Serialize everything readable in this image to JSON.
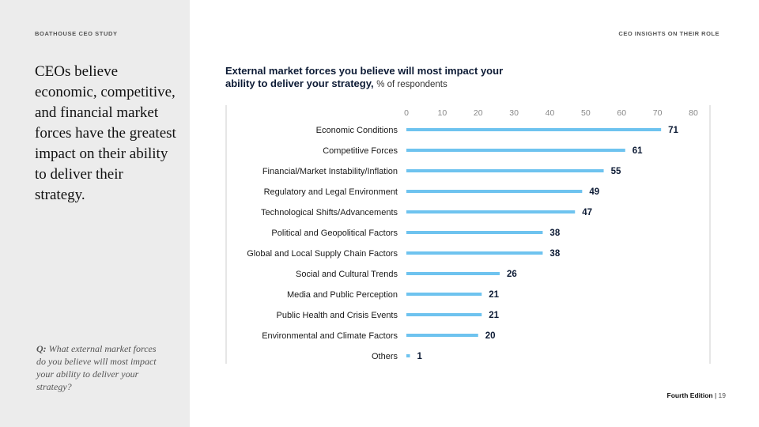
{
  "sidebar": {
    "study_label": "BOATHOUSE CEO STUDY",
    "headline": "CEOs believe economic, competitive, and financial market forces have the greatest impact on their ability to deliver their strategy.",
    "question_prefix": "Q:",
    "question_text": " What external market forces do you believe will most impact your ability to deliver your strategy?"
  },
  "header": {
    "section_label": "CEO INSIGHTS ON THEIR ROLE"
  },
  "footer": {
    "edition": "Fourth Edition",
    "separator": " | ",
    "page": "19"
  },
  "colors": {
    "bar": "#6ec3ef",
    "value_label": "#0d1b35",
    "tick": "#888888",
    "axis_line": "#cccccc"
  },
  "chart_data": {
    "type": "bar",
    "orientation": "horizontal",
    "title": "External market forces you believe will most impact your ability to deliver your strategy,",
    "subtitle": "% of respondents",
    "categories": [
      "Economic Conditions",
      "Competitive Forces",
      "Financial/Market Instability/Inflation",
      "Regulatory and Legal Environment",
      "Technological Shifts/Advancements",
      "Political and Geopolitical Factors",
      "Global and Local Supply Chain Factors",
      "Social and Cultural Trends",
      "Media and Public Perception",
      "Public Health and Crisis Events",
      "Environmental and Climate Factors",
      "Others"
    ],
    "values": [
      71,
      61,
      55,
      49,
      47,
      38,
      38,
      26,
      21,
      21,
      20,
      1
    ],
    "xlim": [
      0,
      80
    ],
    "xticks": [
      0,
      10,
      20,
      30,
      40,
      50,
      60,
      70,
      80
    ],
    "grid": false,
    "legend": "none"
  }
}
